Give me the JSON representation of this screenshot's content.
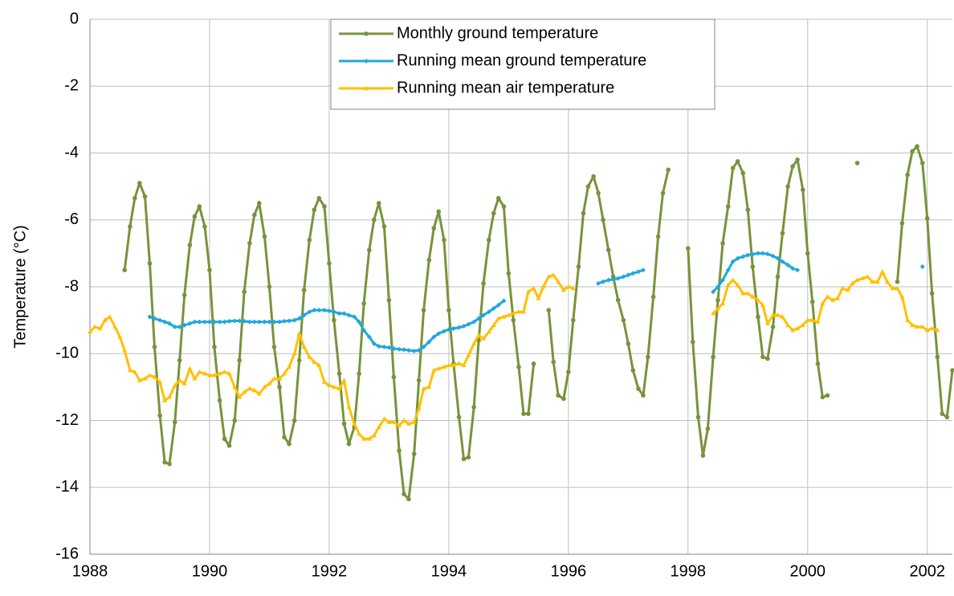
{
  "chart_data": {
    "type": "line",
    "y_label": "Temperature (°C)",
    "x": [
      1988,
      1988.08,
      1988.17,
      1988.25,
      1988.33,
      1988.42,
      1988.5,
      1988.58,
      1988.67,
      1988.75,
      1988.83,
      1988.92,
      1989,
      1989.08,
      1989.17,
      1989.25,
      1989.33,
      1989.42,
      1989.5,
      1989.58,
      1989.67,
      1989.75,
      1989.83,
      1989.92,
      1990,
      1990.08,
      1990.17,
      1990.25,
      1990.33,
      1990.42,
      1990.5,
      1990.58,
      1990.67,
      1990.75,
      1990.83,
      1990.92,
      1991,
      1991.08,
      1991.17,
      1991.25,
      1991.33,
      1991.42,
      1991.5,
      1991.58,
      1991.67,
      1991.75,
      1991.83,
      1991.92,
      1992,
      1992.08,
      1992.17,
      1992.25,
      1992.33,
      1992.42,
      1992.5,
      1992.58,
      1992.67,
      1992.75,
      1992.83,
      1992.92,
      1993,
      1993.08,
      1993.17,
      1993.25,
      1993.33,
      1993.42,
      1993.5,
      1993.58,
      1993.67,
      1993.75,
      1993.83,
      1993.92,
      1994,
      1994.08,
      1994.17,
      1994.25,
      1994.33,
      1994.42,
      1994.5,
      1994.58,
      1994.67,
      1994.75,
      1994.83,
      1994.92,
      1995,
      1995.08,
      1995.17,
      1995.25,
      1995.33,
      1995.42,
      1995.5,
      1995.58,
      1995.67,
      1995.75,
      1995.83,
      1995.92,
      1996,
      1996.08,
      1996.17,
      1996.25,
      1996.33,
      1996.42,
      1996.5,
      1996.58,
      1996.67,
      1996.75,
      1996.83,
      1996.92,
      1997,
      1997.08,
      1997.17,
      1997.25,
      1997.33,
      1997.42,
      1997.5,
      1997.58,
      1997.67,
      1997.75,
      1997.83,
      1997.92,
      1998,
      1998.08,
      1998.17,
      1998.25,
      1998.33,
      1998.42,
      1998.5,
      1998.58,
      1998.67,
      1998.75,
      1998.83,
      1998.92,
      1999,
      1999.08,
      1999.17,
      1999.25,
      1999.33,
      1999.42,
      1999.5,
      1999.58,
      1999.67,
      1999.75,
      1999.83,
      1999.92,
      2000,
      2000.08,
      2000.17,
      2000.25,
      2000.33,
      2000.42,
      2000.5,
      2000.58,
      2000.67,
      2000.75,
      2000.83,
      2000.92,
      2001,
      2001.08,
      2001.17,
      2001.25,
      2001.33,
      2001.42,
      2001.5,
      2001.58,
      2001.67,
      2001.75,
      2001.83,
      2001.92,
      2002,
      2002.08,
      2002.17,
      2002.25,
      2002.33,
      2002.42
    ],
    "series": [
      {
        "name": "Monthly ground temperature",
        "color": "#77933c",
        "marker": "circle",
        "values": [
          null,
          null,
          null,
          null,
          null,
          null,
          null,
          -7.5,
          -6.2,
          -5.35,
          -4.9,
          -5.3,
          -7.3,
          -9.8,
          -11.85,
          -13.25,
          -13.3,
          -12.05,
          -10.2,
          -8.25,
          -6.75,
          -5.9,
          -5.6,
          -6.2,
          -7.5,
          -9.8,
          -11.4,
          -12.55,
          -12.75,
          -12.0,
          -10.2,
          -8.15,
          -6.7,
          -5.85,
          -5.5,
          -6.5,
          -8.0,
          -9.8,
          -11.0,
          -12.5,
          -12.7,
          -12.0,
          -10.2,
          -8.1,
          -6.6,
          -5.7,
          -5.35,
          -5.6,
          -7.3,
          -9.0,
          -10.6,
          -12.1,
          -12.7,
          -12.2,
          -10.6,
          -8.5,
          -6.9,
          -6.0,
          -5.5,
          -6.2,
          -8.4,
          -10.7,
          -12.9,
          -14.2,
          -14.35,
          -13.0,
          -10.8,
          -8.7,
          -7.2,
          -6.25,
          -5.75,
          -6.6,
          -8.7,
          -10.3,
          -11.9,
          -13.15,
          -13.1,
          -11.6,
          -9.6,
          -7.9,
          -6.6,
          -5.8,
          -5.35,
          -5.6,
          -7.6,
          -9.0,
          -10.4,
          -11.8,
          -11.8,
          -10.3,
          null,
          null,
          -8.7,
          -10.25,
          -11.25,
          -11.35,
          -10.55,
          -9.0,
          -7.4,
          -5.8,
          -5.0,
          -4.7,
          -5.2,
          -6.0,
          -6.9,
          -7.7,
          -8.4,
          -9.0,
          -9.7,
          -10.5,
          -11.05,
          -11.25,
          -10.1,
          -8.3,
          -6.5,
          -5.2,
          -4.5,
          null,
          null,
          null,
          -6.85,
          -9.65,
          -11.9,
          -13.05,
          -12.25,
          -10.1,
          -8.4,
          -6.7,
          -5.6,
          -4.45,
          -4.25,
          -4.6,
          -5.7,
          -7.4,
          -8.9,
          -10.1,
          -10.15,
          -9.2,
          -7.7,
          -6.4,
          -5.0,
          -4.4,
          -4.2,
          -5.1,
          -7.0,
          -8.45,
          -10.3,
          -11.3,
          -11.25,
          null,
          null,
          null,
          null,
          null,
          -4.3,
          null,
          null,
          null,
          null,
          null,
          null,
          null,
          -7.85,
          -6.1,
          -4.65,
          -3.95,
          -3.8,
          -4.3,
          -5.95,
          -8.2,
          -10.1,
          -11.8,
          -11.9,
          -10.5
        ]
      },
      {
        "name": "Running mean ground temperature",
        "color": "#1fa8dc",
        "marker": "diamond",
        "values": [
          null,
          null,
          null,
          null,
          null,
          null,
          null,
          null,
          null,
          null,
          null,
          null,
          -8.9,
          -8.95,
          -9.0,
          -9.05,
          -9.1,
          -9.2,
          -9.2,
          -9.15,
          -9.1,
          -9.05,
          -9.05,
          -9.05,
          -9.05,
          -9.05,
          -9.05,
          -9.05,
          -9.03,
          -9.02,
          -9.02,
          -9.03,
          -9.05,
          -9.05,
          -9.05,
          -9.05,
          -9.05,
          -9.05,
          -9.05,
          -9.03,
          -9.02,
          -9.0,
          -8.95,
          -8.85,
          -8.75,
          -8.7,
          -8.7,
          -8.7,
          -8.72,
          -8.75,
          -8.8,
          -8.8,
          -8.85,
          -8.9,
          -9.05,
          -9.3,
          -9.5,
          -9.7,
          -9.78,
          -9.8,
          -9.82,
          -9.85,
          -9.87,
          -9.88,
          -9.9,
          -9.92,
          -9.9,
          -9.8,
          -9.65,
          -9.5,
          -9.4,
          -9.33,
          -9.28,
          -9.25,
          -9.22,
          -9.18,
          -9.12,
          -9.05,
          -8.95,
          -8.85,
          -8.75,
          -8.65,
          -8.55,
          -8.42,
          null,
          null,
          null,
          null,
          null,
          null,
          null,
          null,
          null,
          null,
          null,
          null,
          null,
          null,
          null,
          null,
          null,
          null,
          -7.9,
          -7.85,
          -7.8,
          -7.78,
          -7.75,
          -7.7,
          -7.65,
          -7.6,
          -7.55,
          -7.5,
          null,
          null,
          null,
          null,
          null,
          null,
          null,
          null,
          null,
          null,
          null,
          null,
          null,
          -8.15,
          -8.0,
          -7.8,
          -7.5,
          -7.25,
          -7.15,
          -7.1,
          -7.05,
          -7.03,
          -7.0,
          -7.0,
          -7.02,
          -7.08,
          -7.15,
          -7.25,
          -7.35,
          -7.45,
          -7.5,
          null,
          null,
          null,
          null,
          null,
          null,
          null,
          null,
          null,
          null,
          null,
          null,
          null,
          null,
          null,
          null,
          null,
          null,
          null,
          null,
          null,
          null,
          null,
          null,
          -7.4,
          null,
          null,
          null,
          null,
          null,
          null
        ]
      },
      {
        "name": "Running mean air temperature",
        "color": "#ffc000",
        "marker": "triangle",
        "values": [
          -9.35,
          -9.2,
          -9.25,
          -9.0,
          -8.9,
          -9.2,
          -9.5,
          -9.9,
          -10.5,
          -10.55,
          -10.8,
          -10.75,
          -10.65,
          -10.7,
          -10.85,
          -11.4,
          -11.3,
          -10.95,
          -10.8,
          -10.9,
          -10.45,
          -10.75,
          -10.55,
          -10.6,
          -10.65,
          -10.65,
          -10.6,
          -10.55,
          -10.6,
          -11.0,
          -11.3,
          -11.15,
          -11.05,
          -11.1,
          -11.2,
          -11.0,
          -10.9,
          -10.75,
          -10.75,
          -10.6,
          -10.4,
          -10.0,
          -9.4,
          -9.8,
          -10.1,
          -10.25,
          -10.35,
          -10.85,
          -10.95,
          -11.0,
          -11.05,
          -10.8,
          -11.6,
          -12.1,
          -12.4,
          -12.55,
          -12.55,
          -12.45,
          -12.2,
          -11.95,
          -12.05,
          -12.05,
          -12.15,
          -12.0,
          -12.1,
          -12.05,
          -11.65,
          -11.05,
          -11.0,
          -10.5,
          -10.45,
          -10.4,
          -10.35,
          -10.35,
          -10.3,
          -10.35,
          -10.05,
          -9.7,
          -9.45,
          -9.55,
          -9.35,
          -9.15,
          -8.95,
          -8.9,
          -8.85,
          -8.8,
          -8.75,
          -8.75,
          -8.15,
          -8.05,
          -8.35,
          -8.0,
          -7.7,
          -7.65,
          -7.85,
          -8.1,
          -8.0,
          -8.05,
          null,
          null,
          null,
          null,
          null,
          null,
          null,
          null,
          null,
          null,
          null,
          null,
          null,
          null,
          null,
          null,
          null,
          null,
          null,
          null,
          null,
          null,
          null,
          null,
          null,
          null,
          null,
          -8.8,
          -8.65,
          -8.5,
          -7.95,
          -7.8,
          -7.95,
          -8.2,
          -8.2,
          -8.3,
          -8.4,
          -8.55,
          -9.1,
          -8.85,
          -8.85,
          -8.9,
          -9.15,
          -9.3,
          -9.25,
          -9.15,
          -9.0,
          -9.0,
          -9.05,
          -8.5,
          -8.3,
          -8.4,
          -8.35,
          -8.05,
          -8.1,
          -7.9,
          -7.8,
          -7.75,
          -7.7,
          -7.85,
          -7.85,
          -7.55,
          -7.85,
          -8.05,
          -8.05,
          -8.3,
          -9.0,
          -9.15,
          -9.2,
          -9.2,
          -9.3,
          -9.25,
          -9.3,
          null,
          null,
          null
        ]
      }
    ],
    "xlim": [
      1988,
      2002.42
    ],
    "xticks": [
      1988,
      1990,
      1992,
      1994,
      1996,
      1998,
      2000,
      2002
    ],
    "ylim": [
      -16,
      0
    ],
    "yticks": [
      0,
      -2,
      -4,
      -6,
      -8,
      -10,
      -12,
      -14,
      -16
    ],
    "grid": true,
    "legend": "top"
  }
}
